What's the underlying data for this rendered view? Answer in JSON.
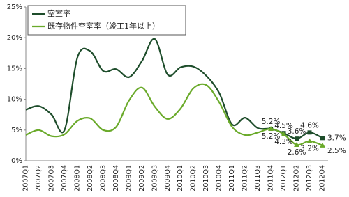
{
  "chart_data": {
    "type": "line",
    "categories": [
      "2007Q1",
      "2007Q2",
      "2007Q3",
      "2007Q4",
      "2008Q1",
      "2008Q2",
      "2008Q3",
      "2008Q4",
      "2009Q1",
      "2009Q2",
      "2009Q3",
      "2009Q4",
      "2010Q1",
      "2010Q2",
      "2010Q3",
      "2010Q4",
      "2011Q1",
      "2011Q2",
      "2011Q3",
      "2011Q4",
      "2012Q1",
      "2012Q2",
      "2012Q3",
      "2012Q4"
    ],
    "series": [
      {
        "name": "空室率",
        "color": "#1e4d2b",
        "marker": "square",
        "values": [
          8.3,
          8.9,
          7.5,
          5.0,
          16.8,
          17.8,
          14.6,
          14.9,
          13.6,
          16.2,
          19.8,
          14.0,
          15.2,
          15.3,
          13.8,
          11.0,
          5.9,
          7.0,
          5.3,
          5.2,
          4.5,
          3.6,
          4.6,
          3.7
        ],
        "value_labels": [
          null,
          null,
          null,
          null,
          null,
          null,
          null,
          null,
          null,
          null,
          null,
          null,
          null,
          null,
          null,
          null,
          null,
          null,
          null,
          "5.2%",
          "4.5%",
          "3.6%",
          "4.6%",
          "3.7%"
        ]
      },
      {
        "name": "既存物件空室率（竣工1年以上）",
        "color": "#6aaa2a",
        "marker": "triangle",
        "values": [
          4.2,
          5.0,
          4.0,
          4.3,
          6.5,
          6.9,
          5.0,
          5.5,
          9.8,
          11.9,
          8.8,
          6.8,
          8.5,
          11.8,
          12.3,
          9.5,
          5.5,
          4.2,
          4.6,
          5.2,
          4.3,
          2.6,
          3.2,
          2.5
        ],
        "value_labels": [
          null,
          null,
          null,
          null,
          null,
          null,
          null,
          null,
          null,
          null,
          null,
          null,
          null,
          null,
          null,
          null,
          null,
          null,
          null,
          "5.2%",
          "4.3%",
          "2.6%",
          "3.2%",
          "2.5%"
        ]
      }
    ],
    "ylim": [
      0,
      25
    ],
    "yticks": [
      {
        "value": 0,
        "label": "0%"
      },
      {
        "value": 5,
        "label": "5%"
      },
      {
        "value": 10,
        "label": "10%"
      },
      {
        "value": 15,
        "label": "15%"
      },
      {
        "value": 20,
        "label": "20%"
      },
      {
        "value": 25,
        "label": "25%"
      }
    ],
    "grid": false
  }
}
